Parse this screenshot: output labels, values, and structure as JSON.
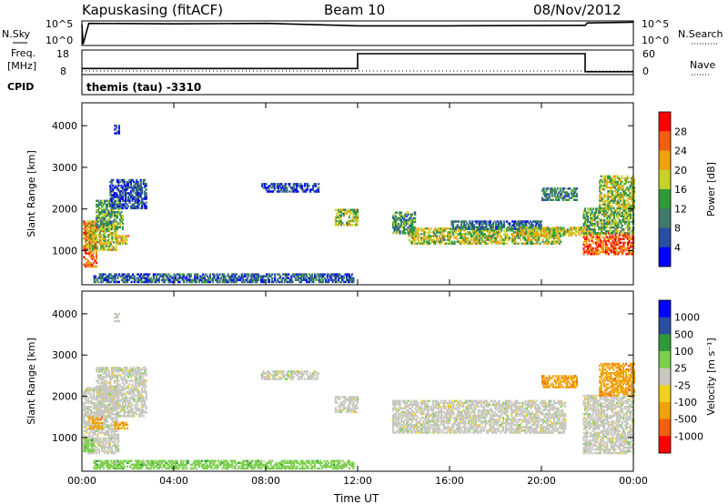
{
  "header": {
    "site": "Kapuskasing (fitACF)",
    "beam": "Beam 10",
    "date": "08/Nov/2012"
  },
  "status_panels": {
    "nsky_label": "N.Sky",
    "nsky_ticks": [
      "10^5",
      "10^0"
    ],
    "nsearch_label": "N.Search",
    "nsearch_ticks": [
      "10^5",
      "10^0"
    ],
    "freq_label_line1": "Freq.",
    "freq_label_line2": "[MHz]",
    "freq_ticks": [
      "18",
      "8"
    ],
    "nave_label": "Nave",
    "nave_ticks": [
      "60",
      "0"
    ],
    "cpid_label": "CPID",
    "cpid_text": "themis (tau) -3310"
  },
  "chart_data": [
    {
      "type": "heatmap",
      "name": "power",
      "ylabel": "Slant Range [km]",
      "xlabel": "",
      "xlim": [
        0,
        24
      ],
      "ylim": [
        180,
        4550
      ],
      "x_ticks": [
        "00:00",
        "04:00",
        "08:00",
        "12:00",
        "16:00",
        "20:00",
        "00:00"
      ],
      "y_ticks": [
        1000,
        2000,
        3000,
        4000
      ],
      "colorbar": {
        "label": "Power [dB]",
        "ticks": [
          "4",
          "8",
          "12",
          "16",
          "20",
          "24",
          "28"
        ],
        "colors": [
          "#0000ff",
          "#2a4ea0",
          "#3f7a6a",
          "#2f9a3a",
          "#c8d02c",
          "#f0a010",
          "#f06010",
          "#ff0000"
        ]
      },
      "regions": [
        {
          "t0": 0.05,
          "t1": 0.6,
          "r0": 600,
          "r1": 1700,
          "level": 0.85
        },
        {
          "t0": 0.2,
          "t1": 1.5,
          "r0": 1000,
          "r1": 1700,
          "level": 0.55
        },
        {
          "t0": 0.6,
          "t1": 1.8,
          "r0": 1500,
          "r1": 2200,
          "level": 0.4
        },
        {
          "t0": 1.2,
          "t1": 2.8,
          "r0": 2000,
          "r1": 2700,
          "level": 0.15
        },
        {
          "t0": 1.5,
          "t1": 2.0,
          "r0": 1150,
          "r1": 1350,
          "level": 0.6
        },
        {
          "t0": 1.4,
          "t1": 1.6,
          "r0": 3800,
          "r1": 4000,
          "level": 0.1
        },
        {
          "t0": 7.8,
          "t1": 10.3,
          "r0": 2400,
          "r1": 2600,
          "level": 0.1
        },
        {
          "t0": 11.0,
          "t1": 12.0,
          "r0": 1600,
          "r1": 2000,
          "level": 0.5
        },
        {
          "t0": 0.5,
          "t1": 11.8,
          "r0": 230,
          "r1": 420,
          "level": 0.2
        },
        {
          "t0": 13.5,
          "t1": 14.5,
          "r0": 1400,
          "r1": 1900,
          "level": 0.35
        },
        {
          "t0": 14.2,
          "t1": 20.8,
          "r0": 1150,
          "r1": 1550,
          "level": 0.55
        },
        {
          "t0": 16.0,
          "t1": 20.0,
          "r0": 1500,
          "r1": 1700,
          "level": 0.25
        },
        {
          "t0": 19.0,
          "t1": 22.0,
          "r0": 1350,
          "r1": 1550,
          "level": 0.6
        },
        {
          "t0": 20.0,
          "t1": 21.5,
          "r0": 2200,
          "r1": 2500,
          "level": 0.3
        },
        {
          "t0": 21.8,
          "t1": 24.0,
          "r0": 900,
          "r1": 1400,
          "level": 0.85
        },
        {
          "t0": 21.8,
          "t1": 24.0,
          "r0": 1400,
          "r1": 2000,
          "level": 0.45
        },
        {
          "t0": 22.5,
          "t1": 24.0,
          "r0": 2000,
          "r1": 2800,
          "level": 0.55
        }
      ]
    },
    {
      "type": "heatmap",
      "name": "velocity",
      "ylabel": "Slant Range [km]",
      "xlabel": "Time UT",
      "xlim": [
        0,
        24
      ],
      "ylim": [
        180,
        4550
      ],
      "x_ticks": [
        "00:00",
        "04:00",
        "08:00",
        "12:00",
        "16:00",
        "20:00",
        "00:00"
      ],
      "y_ticks": [
        1000,
        2000,
        3000,
        4000
      ],
      "colorbar": {
        "label": "Velocity [m s⁻¹]",
        "ticks": [
          "1000",
          "500",
          "100",
          "25",
          "-25",
          "-100",
          "-500",
          "-1000"
        ],
        "colors": [
          "#0000ff",
          "#2a4ea0",
          "#2f9a3a",
          "#7cd04c",
          "#c8c8c0",
          "#f0d020",
          "#f0a010",
          "#f06010",
          "#ff0000"
        ]
      },
      "regions": [
        {
          "t0": 0.05,
          "t1": 1.6,
          "r0": 600,
          "r1": 2200,
          "level": 4
        },
        {
          "t0": 0.3,
          "t1": 0.9,
          "r0": 1200,
          "r1": 1500,
          "level": 6
        },
        {
          "t0": 1.4,
          "t1": 2.0,
          "r0": 1200,
          "r1": 1350,
          "level": 6
        },
        {
          "t0": 0.6,
          "t1": 2.8,
          "r0": 1500,
          "r1": 2700,
          "level": 4
        },
        {
          "t0": 0.05,
          "t1": 0.5,
          "r0": 650,
          "r1": 1000,
          "level": 3
        },
        {
          "t0": 1.4,
          "t1": 1.6,
          "r0": 3800,
          "r1": 4000,
          "level": 4
        },
        {
          "t0": 7.8,
          "t1": 10.3,
          "r0": 2400,
          "r1": 2600,
          "level": 4
        },
        {
          "t0": 11.0,
          "t1": 12.0,
          "r0": 1600,
          "r1": 2000,
          "level": 4
        },
        {
          "t0": 0.5,
          "t1": 11.8,
          "r0": 230,
          "r1": 420,
          "level": 3
        },
        {
          "t0": 13.5,
          "t1": 21.0,
          "r0": 1100,
          "r1": 1900,
          "level": 4
        },
        {
          "t0": 20.0,
          "t1": 21.5,
          "r0": 2200,
          "r1": 2500,
          "level": 6
        },
        {
          "t0": 21.8,
          "t1": 24.0,
          "r0": 600,
          "r1": 2000,
          "level": 4
        },
        {
          "t0": 22.5,
          "t1": 24.0,
          "r0": 2000,
          "r1": 2800,
          "level": 6
        }
      ]
    }
  ],
  "series_nsky": [
    [
      0.0,
      0.85
    ],
    [
      0.05,
      0.05
    ],
    [
      0.3,
      0.9
    ],
    [
      4.0,
      0.88
    ],
    [
      8.0,
      0.9
    ],
    [
      12.0,
      0.8
    ],
    [
      16.0,
      0.8
    ],
    [
      21.9,
      0.82
    ],
    [
      22.0,
      0.92
    ],
    [
      24.0,
      0.95
    ]
  ],
  "series_freq": [
    [
      0.0,
      0.25
    ],
    [
      12.0,
      0.25
    ],
    [
      12.0,
      0.85
    ],
    [
      21.9,
      0.85
    ],
    [
      21.9,
      0.12
    ],
    [
      24.0,
      0.12
    ]
  ],
  "series_nave": [
    [
      0.0,
      0.15
    ],
    [
      24.0,
      0.15
    ]
  ]
}
